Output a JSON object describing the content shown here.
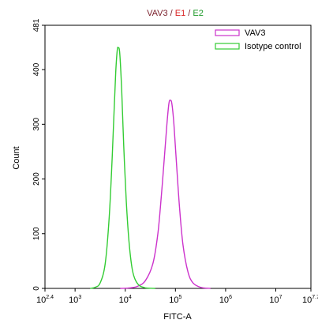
{
  "chart_data": {
    "type": "line",
    "title_parts": [
      {
        "text": "VAV3",
        "color": "#7a1f2b"
      },
      {
        "text": " / ",
        "color": "#7a1f2b"
      },
      {
        "text": "E1",
        "color": "#d92121"
      },
      {
        "text": " / ",
        "color": "#7a1f2b"
      },
      {
        "text": "E2",
        "color": "#1f9a2a"
      }
    ],
    "xlabel": "FITC-A",
    "ylabel": "Count",
    "x_scale": "log10",
    "xlim": [
      2.4,
      7.7
    ],
    "ylim": [
      0,
      481
    ],
    "x_ticks": [
      {
        "label": "10",
        "sup": "2.4",
        "value": 2.4
      },
      {
        "label": "10",
        "sup": "3",
        "value": 3
      },
      {
        "label": "10",
        "sup": "4",
        "value": 4
      },
      {
        "label": "10",
        "sup": "5",
        "value": 5
      },
      {
        "label": "10",
        "sup": "6",
        "value": 6
      },
      {
        "label": "10",
        "sup": "7",
        "value": 7
      },
      {
        "label": "10",
        "sup": "7.7",
        "value": 7.7
      }
    ],
    "y_ticks": [
      0,
      100,
      200,
      300,
      400,
      481
    ],
    "grid": false,
    "legend_position": "top-right",
    "series": [
      {
        "name": "VAV3",
        "color": "#cc33cc",
        "points": [
          [
            3.9,
            0
          ],
          [
            4.1,
            1
          ],
          [
            4.25,
            4
          ],
          [
            4.4,
            14
          ],
          [
            4.55,
            45
          ],
          [
            4.65,
            100
          ],
          [
            4.72,
            170
          ],
          [
            4.78,
            240
          ],
          [
            4.83,
            300
          ],
          [
            4.87,
            338
          ],
          [
            4.9,
            344
          ],
          [
            4.93,
            337
          ],
          [
            4.97,
            300
          ],
          [
            5.02,
            230
          ],
          [
            5.08,
            150
          ],
          [
            5.15,
            80
          ],
          [
            5.25,
            30
          ],
          [
            5.35,
            10
          ],
          [
            5.5,
            2
          ],
          [
            5.7,
            0
          ]
        ]
      },
      {
        "name": "Isotype control",
        "color": "#33cc33",
        "points": [
          [
            3.3,
            0
          ],
          [
            3.4,
            2
          ],
          [
            3.5,
            10
          ],
          [
            3.6,
            45
          ],
          [
            3.68,
            130
          ],
          [
            3.74,
            240
          ],
          [
            3.78,
            330
          ],
          [
            3.81,
            395
          ],
          [
            3.84,
            435
          ],
          [
            3.86,
            440
          ],
          [
            3.89,
            430
          ],
          [
            3.93,
            360
          ],
          [
            3.97,
            260
          ],
          [
            4.02,
            160
          ],
          [
            4.08,
            80
          ],
          [
            4.15,
            30
          ],
          [
            4.25,
            8
          ],
          [
            4.4,
            1
          ],
          [
            4.6,
            0
          ]
        ]
      }
    ]
  }
}
